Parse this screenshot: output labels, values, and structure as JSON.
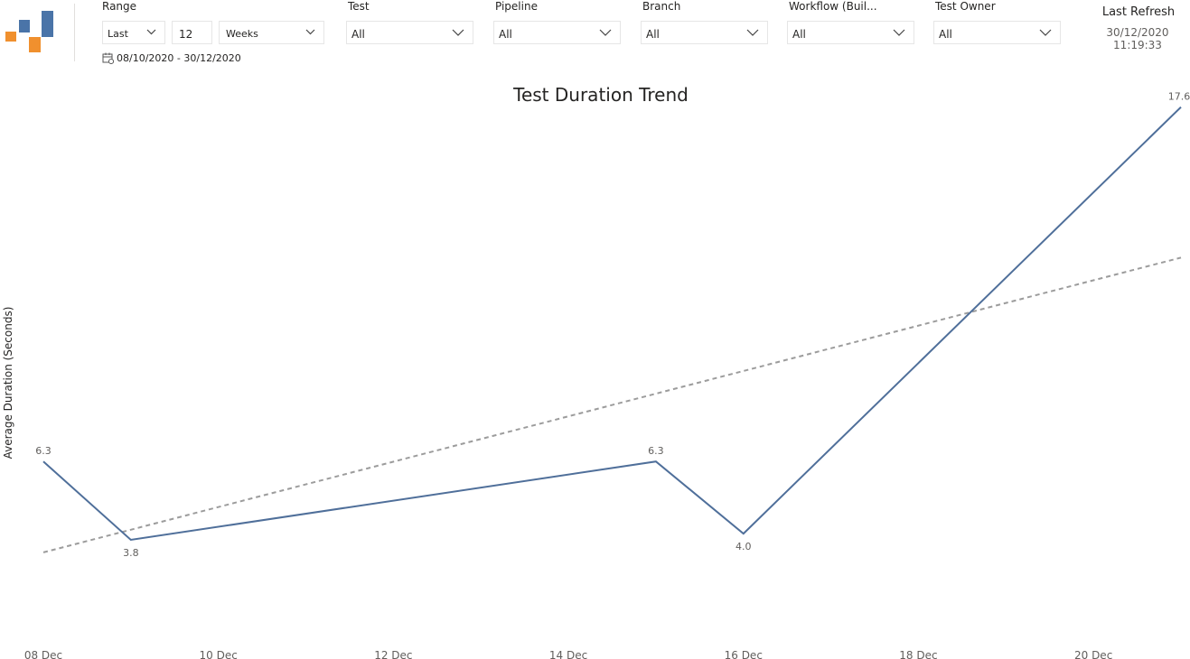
{
  "filters": {
    "range": {
      "label": "Range",
      "mode": "Last",
      "count": "12",
      "unit": "Weeks",
      "date_range": "08/10/2020 - 30/12/2020"
    },
    "test": {
      "label": "Test",
      "value": "All"
    },
    "pipeline": {
      "label": "Pipeline",
      "value": "All"
    },
    "branch": {
      "label": "Branch",
      "value": "All"
    },
    "workflow": {
      "label": "Workflow (Buil...",
      "value": "All"
    },
    "test_owner": {
      "label": "Test Owner",
      "value": "All"
    }
  },
  "last_refresh": {
    "label": "Last Refresh",
    "value": "30/12/2020 11:19:33"
  },
  "colors": {
    "line": "#4f6f9a",
    "trend": "#9c9c9c",
    "logo_blue": "#4a74a8",
    "logo_orange": "#f0902e"
  },
  "chart_data": {
    "type": "line",
    "title": "Test Duration Trend",
    "ylabel": "Average Duration (Seconds)",
    "xlabel": "",
    "x_tick_labels": [
      "08 Dec",
      "10 Dec",
      "12 Dec",
      "14 Dec",
      "16 Dec",
      "18 Dec",
      "20 Dec"
    ],
    "x_tick_dates": [
      "2020-12-08",
      "2020-12-10",
      "2020-12-12",
      "2020-12-14",
      "2020-12-16",
      "2020-12-18",
      "2020-12-20"
    ],
    "xlim": [
      "2020-12-08",
      "2020-12-21"
    ],
    "series": [
      {
        "x": [
          "2020-12-08",
          "2020-12-09",
          "2020-12-15",
          "2020-12-16",
          "2020-12-21"
        ],
        "y": [
          6.3,
          3.8,
          6.3,
          4.0,
          17.6
        ],
        "labels": [
          "6.3",
          "3.8",
          "6.3",
          "4.0",
          "17.6"
        ]
      }
    ],
    "trend_line": {
      "style": "dashed",
      "x": [
        "2020-12-08",
        "2020-12-21"
      ],
      "y": [
        3.4,
        12.8
      ]
    },
    "ylim": [
      0,
      19
    ],
    "grid": false,
    "legend": false
  }
}
